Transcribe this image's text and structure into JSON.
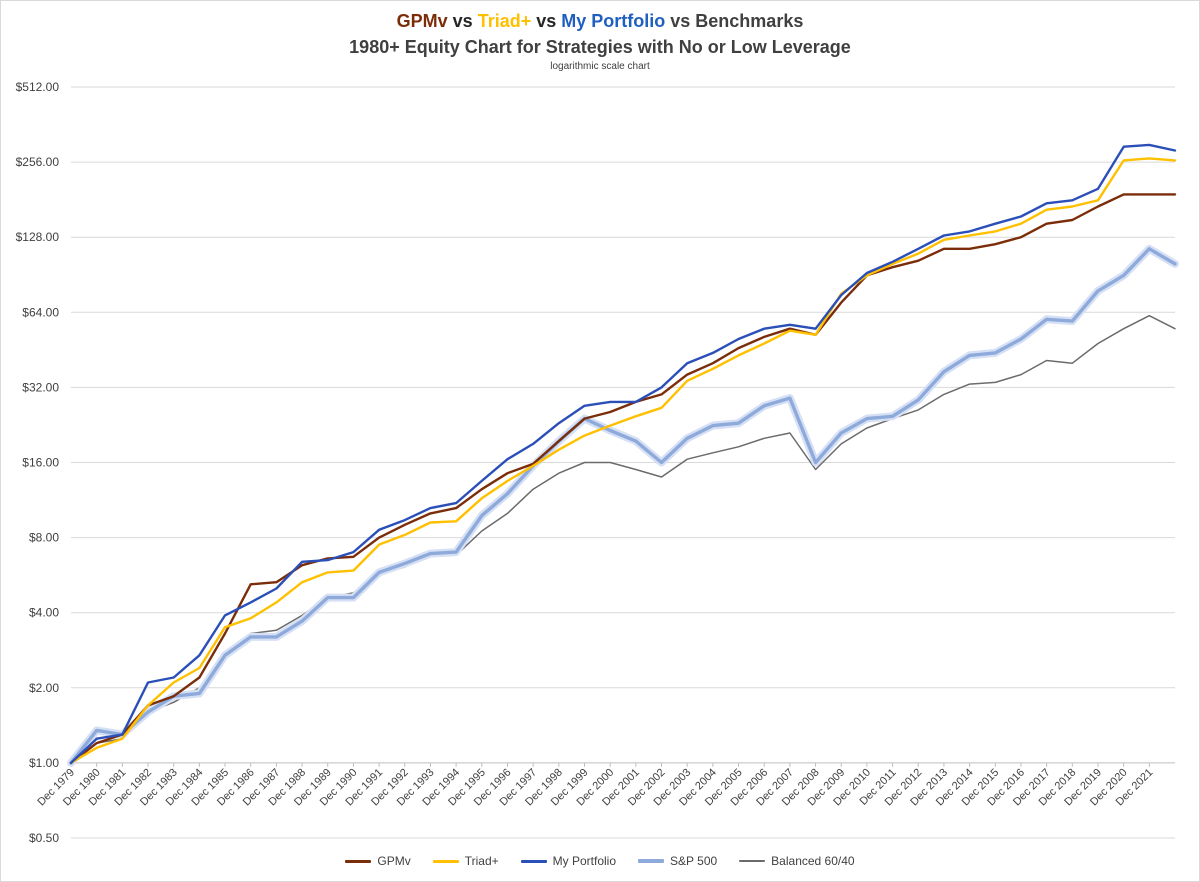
{
  "title": {
    "line1_parts": [
      {
        "text": "GPMv",
        "color": "#7b2d0a"
      },
      {
        "text": " vs ",
        "color": "#262626"
      },
      {
        "text": "Triad+",
        "color": "#ffc000"
      },
      {
        "text": " vs ",
        "color": "#262626"
      },
      {
        "text": "My Portfolio",
        "color": "#1f5fbf"
      },
      {
        "text": " vs Benchmarks",
        "color": "#404040"
      }
    ],
    "line2": "1980+ Equity Chart for Strategies with No or Low  Leverage",
    "subtitle": "logarithmic scale chart"
  },
  "chart_data": {
    "type": "line",
    "y_scale": "log2",
    "ylim": [
      0.5,
      512
    ],
    "y_ticks": [
      "$512.00",
      "$256.00",
      "$128.00",
      "$64.00",
      "$32.00",
      "$16.00",
      "$8.00",
      "$4.00",
      "$2.00",
      "$1.00",
      "$0.50"
    ],
    "y_tick_values": [
      512,
      256,
      128,
      64,
      32,
      16,
      8,
      4,
      2,
      1,
      0.5
    ],
    "x_tick_labels": [
      "Dec 1979",
      "Dec 1980",
      "Dec 1981",
      "Dec 1982",
      "Dec 1983",
      "Dec 1984",
      "Dec 1985",
      "Dec 1986",
      "Dec 1987",
      "Dec 1988",
      "Dec 1989",
      "Dec 1990",
      "Dec 1991",
      "Dec 1992",
      "Dec 1993",
      "Dec 1994",
      "Dec 1995",
      "Dec 1996",
      "Dec 1997",
      "Dec 1998",
      "Dec 1999",
      "Dec 2000",
      "Dec 2001",
      "Dec 2002",
      "Dec 2003",
      "Dec 2004",
      "Dec 2005",
      "Dec 2006",
      "Dec 2007",
      "Dec 2008",
      "Dec 2009",
      "Dec 2010",
      "Dec 2011",
      "Dec 2012",
      "Dec 2013",
      "Dec 2014",
      "Dec 2015",
      "Dec 2016",
      "Dec 2017",
      "Dec 2018",
      "Dec 2019",
      "Dec 2020",
      "Dec 2021"
    ],
    "x": [
      "Dec 1979",
      "Dec 1980",
      "Dec 1981",
      "Dec 1982",
      "Dec 1983",
      "Dec 1984",
      "Dec 1985",
      "Dec 1986",
      "Dec 1987",
      "Dec 1988",
      "Dec 1989",
      "Dec 1990",
      "Dec 1991",
      "Dec 1992",
      "Dec 1993",
      "Dec 1994",
      "Dec 1995",
      "Dec 1996",
      "Dec 1997",
      "Dec 1998",
      "Dec 1999",
      "Dec 2000",
      "Dec 2001",
      "Dec 2002",
      "Dec 2003",
      "Dec 2004",
      "Dec 2005",
      "Dec 2006",
      "Dec 2007",
      "Dec 2008",
      "Dec 2009",
      "Dec 2010",
      "Dec 2011",
      "Dec 2012",
      "Dec 2013",
      "Dec 2014",
      "Dec 2015",
      "Dec 2016",
      "Dec 2017",
      "Dec 2018",
      "Dec 2019",
      "Dec 2020",
      "Dec 2021",
      "Dec 2022"
    ],
    "grid": true,
    "legend_position": "bottom",
    "series": [
      {
        "name": "GPMv",
        "color": "#7b2d0a",
        "width": 2.4,
        "halo": false,
        "values": [
          1.0,
          1.2,
          1.3,
          1.7,
          1.85,
          2.2,
          3.3,
          5.2,
          5.3,
          6.2,
          6.6,
          6.7,
          8.0,
          9.0,
          10.0,
          10.5,
          12.5,
          14.5,
          15.8,
          19.5,
          24.0,
          25.5,
          28.0,
          30.0,
          36.0,
          40.0,
          46.0,
          51.0,
          55.0,
          52.0,
          70.0,
          90.0,
          97.0,
          103.0,
          115.0,
          115.0,
          120.0,
          128.0,
          145.0,
          150.0,
          170.0,
          190.0,
          190.0,
          190.0
        ]
      },
      {
        "name": "Triad+",
        "color": "#ffc000",
        "width": 2.4,
        "halo": false,
        "values": [
          1.0,
          1.15,
          1.25,
          1.7,
          2.1,
          2.4,
          3.5,
          3.8,
          4.4,
          5.3,
          5.8,
          5.9,
          7.5,
          8.2,
          9.2,
          9.3,
          11.5,
          13.5,
          15.5,
          18.0,
          20.5,
          22.5,
          24.5,
          26.5,
          34.0,
          38.0,
          43.0,
          48.0,
          54.0,
          52.0,
          76.0,
          90.0,
          100.0,
          110.0,
          125.0,
          130.0,
          135.0,
          145.0,
          165.0,
          170.0,
          180.0,
          260.0,
          265.0,
          260.0
        ]
      },
      {
        "name": "My Portfolio",
        "color": "#2b4fb8",
        "width": 2.4,
        "halo": false,
        "values": [
          1.0,
          1.25,
          1.3,
          2.1,
          2.2,
          2.7,
          3.9,
          4.4,
          5.0,
          6.4,
          6.5,
          7.0,
          8.6,
          9.4,
          10.5,
          11.0,
          13.5,
          16.5,
          19.0,
          23.0,
          27.0,
          28.0,
          28.0,
          32.0,
          40.0,
          44.0,
          50.0,
          55.0,
          57.0,
          55.0,
          75.0,
          92.0,
          102.0,
          115.0,
          130.0,
          135.0,
          145.0,
          155.0,
          175.0,
          180.0,
          200.0,
          295.0,
          300.0,
          285.0
        ]
      },
      {
        "name": "S&P 500",
        "color": "#8eaadb",
        "width": 3.4,
        "halo": true,
        "values": [
          1.0,
          1.35,
          1.3,
          1.6,
          1.85,
          1.9,
          2.7,
          3.2,
          3.2,
          3.7,
          4.6,
          4.6,
          5.8,
          6.3,
          6.9,
          7.0,
          9.8,
          12.0,
          15.5,
          19.5,
          24.0,
          21.5,
          19.5,
          16.0,
          20.0,
          22.5,
          23.0,
          27.0,
          29.0,
          16.0,
          21.0,
          24.0,
          24.5,
          28.5,
          37.0,
          43.0,
          44.0,
          50.0,
          60.0,
          59.0,
          78.0,
          90.0,
          115.0,
          100.0
        ]
      },
      {
        "name": "Balanced 60/40",
        "color": "#6b6b6b",
        "width": 1.5,
        "halo": false,
        "values": [
          1.0,
          1.2,
          1.25,
          1.6,
          1.75,
          2.0,
          2.7,
          3.3,
          3.4,
          3.9,
          4.6,
          4.8,
          5.7,
          6.1,
          6.8,
          6.8,
          8.5,
          10.0,
          12.5,
          14.5,
          16.0,
          16.0,
          15.0,
          14.0,
          16.5,
          17.5,
          18.5,
          20.0,
          21.0,
          15.0,
          19.0,
          22.0,
          24.0,
          26.0,
          30.0,
          33.0,
          33.5,
          36.0,
          41.0,
          40.0,
          48.0,
          55.0,
          62.0,
          55.0
        ]
      }
    ]
  }
}
